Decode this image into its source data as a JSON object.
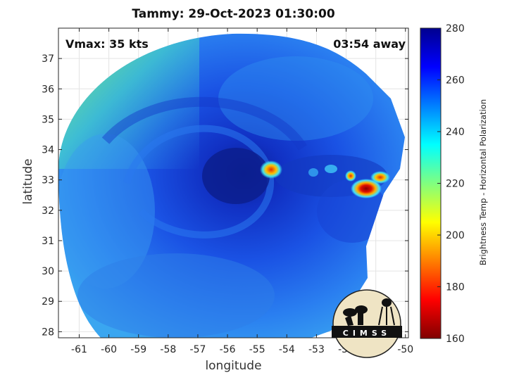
{
  "plot": {
    "title": "Tammy: 29-Oct-2023 01:30:00",
    "xlabel": "longitude",
    "ylabel": "latitude",
    "vmax_text": "Vmax: 35 kts",
    "away_text": "03:54 away",
    "x_ticks": [
      "-61",
      "-60",
      "-59",
      "-58",
      "-57",
      "-56",
      "-55",
      "-54",
      "-53",
      "-52",
      "-51",
      "-50"
    ],
    "y_ticks": [
      "37",
      "36",
      "35",
      "34",
      "33",
      "32",
      "31",
      "30",
      "29",
      "28"
    ],
    "xlim": [
      -61.7,
      -49.9
    ],
    "ylim": [
      27.8,
      38.0
    ]
  },
  "colorbar": {
    "label": "Brightness Temp - Horizontal Polarization",
    "ticks": [
      "280",
      "260",
      "240",
      "220",
      "200",
      "180",
      "160"
    ],
    "range": [
      160,
      280
    ],
    "colormap": "jet"
  },
  "logo": {
    "text": "CIMSS"
  },
  "colors": {
    "background": "#1e5fe8",
    "core": "#0f2aa8",
    "hot": "#8a0000",
    "cold_edge": "#7fe05a"
  }
}
